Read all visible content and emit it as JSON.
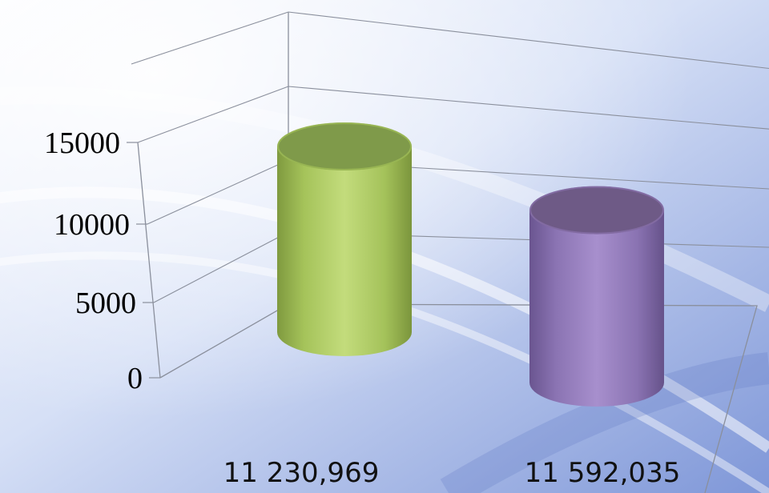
{
  "chart_data": {
    "type": "bar",
    "bar_shape": "3d-cylinder",
    "categories": [
      "11 230,969",
      "11 592,035"
    ],
    "values": [
      14000,
      13000
    ],
    "yticks": [
      0,
      5000,
      10000,
      15000
    ],
    "ylim": [
      0,
      20000
    ],
    "grid": true,
    "legend": "none",
    "colors": [
      "#a8c85a",
      "#9077b5"
    ],
    "top_colors": [
      "#7f9a4a",
      "#6e5a86"
    ],
    "background": [
      "#fbfcff",
      "#c8d6f2",
      "#7f97d8"
    ]
  }
}
